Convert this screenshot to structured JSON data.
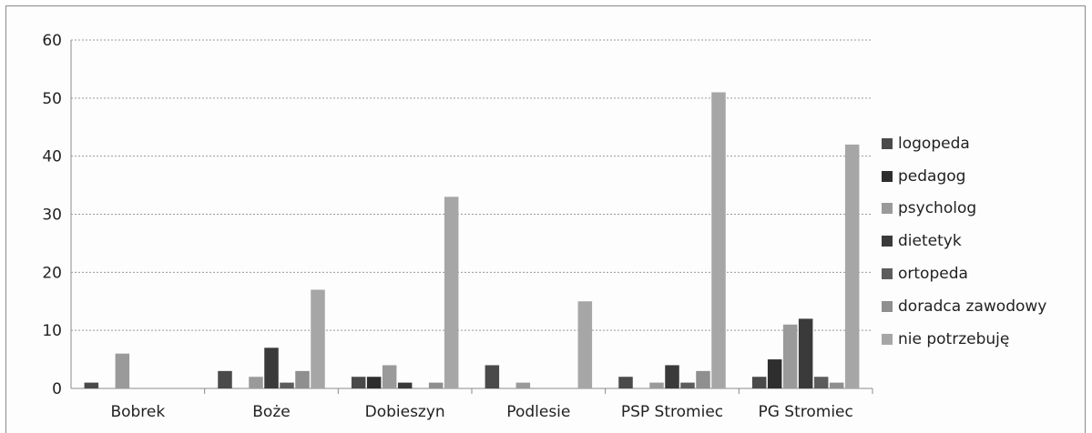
{
  "chart_data": {
    "type": "bar",
    "categories": [
      "Bobrek",
      "Boże",
      "Dobieszyn",
      "Podlesie",
      "PSP Stromiec",
      "PG Stromiec"
    ],
    "series": [
      {
        "name": "logopeda",
        "color": "#4a4a4a",
        "values": [
          1,
          3,
          2,
          4,
          2,
          2
        ]
      },
      {
        "name": "pedagog",
        "color": "#2e2e2e",
        "values": [
          0,
          0,
          2,
          0,
          0,
          5
        ]
      },
      {
        "name": "psycholog",
        "color": "#9a9a9a",
        "values": [
          6,
          2,
          4,
          1,
          1,
          11
        ]
      },
      {
        "name": "dietetyk",
        "color": "#3a3a3a",
        "values": [
          0,
          7,
          1,
          0,
          4,
          12
        ]
      },
      {
        "name": "ortopeda",
        "color": "#5c5c5c",
        "values": [
          0,
          1,
          0,
          0,
          1,
          2
        ]
      },
      {
        "name": "doradca zawodowy",
        "color": "#8f8f8f",
        "values": [
          0,
          3,
          1,
          0,
          3,
          1
        ]
      },
      {
        "name": "nie potrzebuję",
        "color": "#a6a6a6",
        "values": [
          0,
          17,
          33,
          15,
          51,
          42
        ]
      }
    ],
    "ylim": [
      0,
      60
    ],
    "yticks": [
      0,
      10,
      20,
      30,
      40,
      50,
      60
    ],
    "grid": true,
    "legend": "right"
  }
}
